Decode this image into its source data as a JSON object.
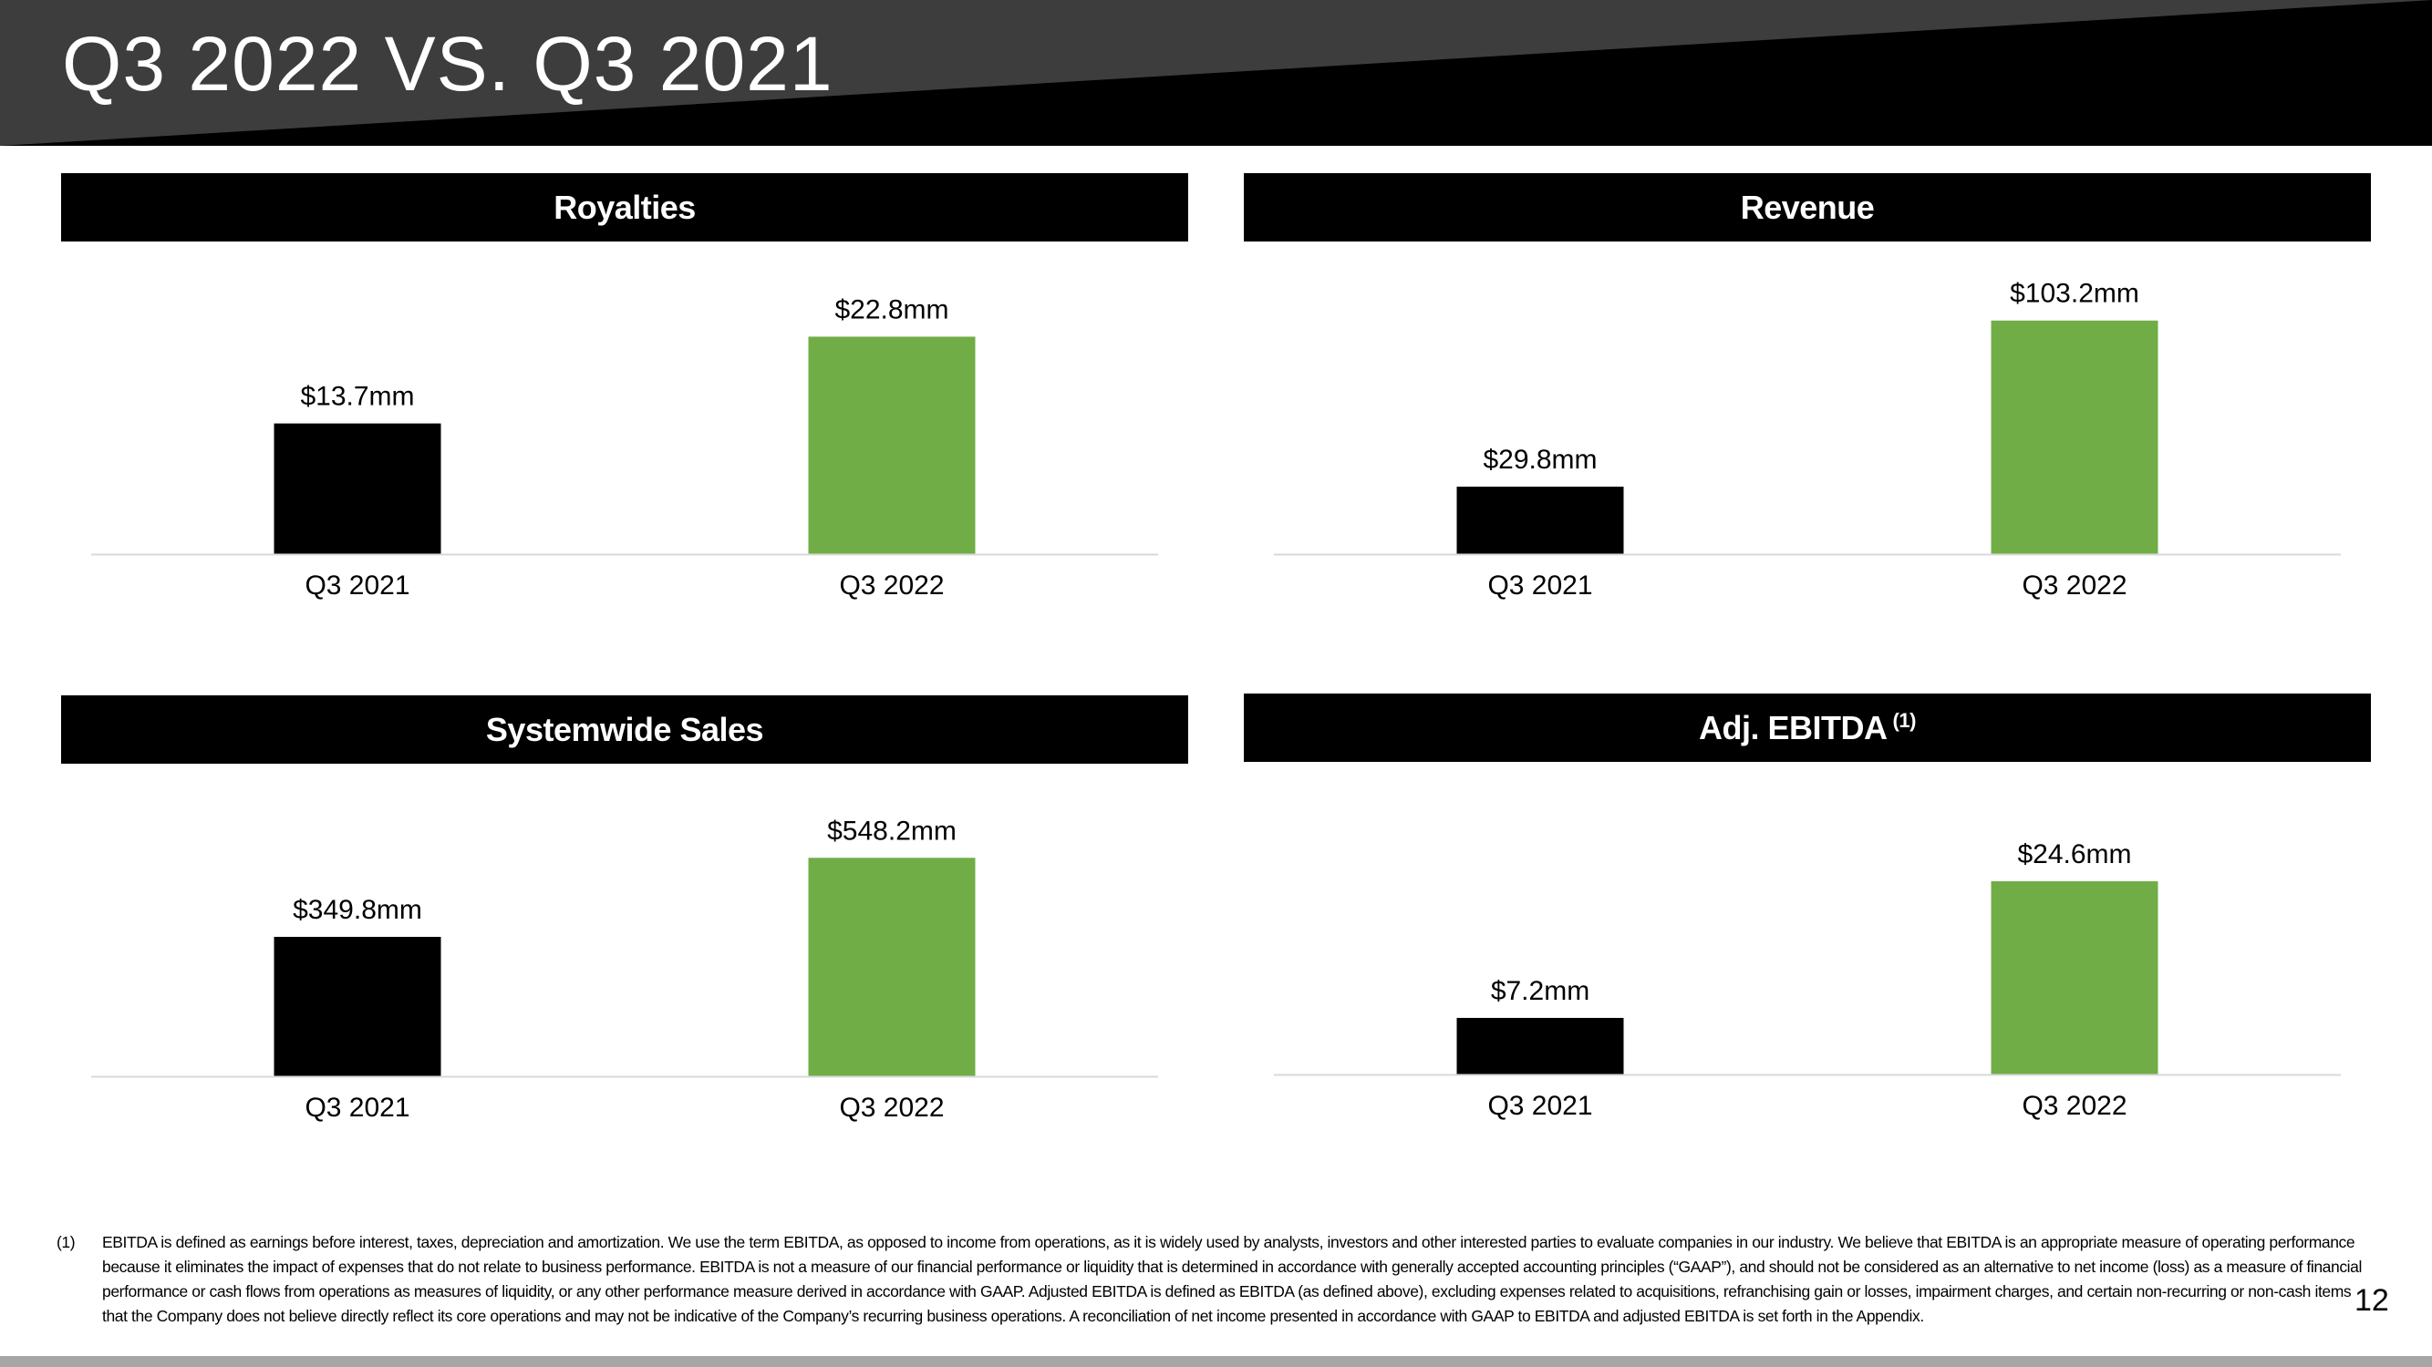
{
  "slide": {
    "title": "Q3 2022 VS. Q3 2021",
    "page_number": "12"
  },
  "colors": {
    "header_bg": "#000000",
    "header_band": "#3d3d3d",
    "bar_prior": "#000000",
    "bar_current": "#70ad47",
    "baseline": "#d9d9d9",
    "footer_bar": "#a6a6a6"
  },
  "footnote": {
    "mark": "(1)",
    "text": "EBITDA is defined as earnings before interest, taxes, depreciation and amortization. We use the term EBITDA, as opposed to income from operations, as it is widely used by analysts, investors and other interested parties to evaluate companies in our industry. We believe that EBITDA is an appropriate measure of operating performance because it eliminates the impact of expenses that do not relate to business performance. EBITDA is not a measure of our financial performance or liquidity that is determined in accordance with generally accepted accounting principles (“GAAP”), and should not be considered as an alternative to net income (loss) as a measure of financial performance or cash flows from operations as measures of liquidity, or any other performance measure derived in accordance with GAAP. Adjusted EBITDA is defined as EBITDA (as defined above), excluding expenses related to acquisitions, refranchising gain or losses, impairment charges, and certain non-recurring or non-cash items that the Company does not believe directly reflect its core operations and may not be indicative of the Company’s recurring business operations. A reconciliation of net income presented in accordance with GAAP to EBITDA and adjusted EBITDA is set forth in the Appendix."
  },
  "chart_data": [
    {
      "type": "bar",
      "title": "Royalties",
      "title_sup": "",
      "categories": [
        "Q3 2021",
        "Q3 2022"
      ],
      "values": [
        13.7,
        22.8
      ],
      "labels": [
        "$13.7mm",
        "$22.8mm"
      ],
      "ylim": [
        0,
        28
      ]
    },
    {
      "type": "bar",
      "title": "Revenue",
      "title_sup": "",
      "categories": [
        "Q3 2021",
        "Q3 2022"
      ],
      "values": [
        29.8,
        103.2
      ],
      "labels": [
        "$29.8mm",
        "$103.2mm"
      ],
      "ylim": [
        0,
        118
      ]
    },
    {
      "type": "bar",
      "title": "Systemwide Sales",
      "title_sup": "",
      "categories": [
        "Q3 2021",
        "Q3 2022"
      ],
      "values": [
        349.8,
        548.2
      ],
      "labels": [
        "$349.8mm",
        "$548.2mm"
      ],
      "ylim": [
        0,
        670
      ]
    },
    {
      "type": "bar",
      "title": "Adj. EBITDA",
      "title_sup": "(1)",
      "categories": [
        "Q3 2021",
        "Q3 2022"
      ],
      "values": [
        7.2,
        24.6
      ],
      "labels": [
        "$7.2mm",
        "$24.6mm"
      ],
      "ylim": [
        0,
        34
      ]
    }
  ]
}
